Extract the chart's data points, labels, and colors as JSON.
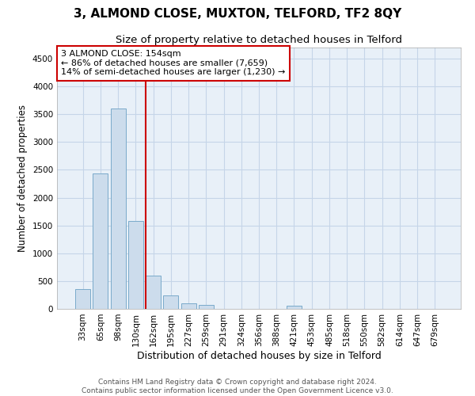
{
  "title": "3, ALMOND CLOSE, MUXTON, TELFORD, TF2 8QY",
  "subtitle": "Size of property relative to detached houses in Telford",
  "xlabel": "Distribution of detached houses by size in Telford",
  "ylabel": "Number of detached properties",
  "categories": [
    "33sqm",
    "65sqm",
    "98sqm",
    "130sqm",
    "162sqm",
    "195sqm",
    "227sqm",
    "259sqm",
    "291sqm",
    "324sqm",
    "356sqm",
    "388sqm",
    "421sqm",
    "453sqm",
    "485sqm",
    "518sqm",
    "550sqm",
    "582sqm",
    "614sqm",
    "647sqm",
    "679sqm"
  ],
  "values": [
    360,
    2430,
    3600,
    1580,
    600,
    240,
    100,
    65,
    0,
    0,
    0,
    0,
    55,
    0,
    0,
    0,
    0,
    0,
    0,
    0,
    0
  ],
  "bar_color": "#ccdcec",
  "bar_edge_color": "#7aaaca",
  "vline_position": 4,
  "property_line_label": "3 ALMOND CLOSE: 154sqm",
  "annotation_line1": "← 86% of detached houses are smaller (7,659)",
  "annotation_line2": "14% of semi-detached houses are larger (1,230) →",
  "annotation_box_color": "#ffffff",
  "annotation_box_edge": "#cc0000",
  "vline_color": "#cc0000",
  "ylim": [
    0,
    4700
  ],
  "yticks": [
    0,
    500,
    1000,
    1500,
    2000,
    2500,
    3000,
    3500,
    4000,
    4500
  ],
  "grid_color": "#c5d5e8",
  "bg_color": "#e8f0f8",
  "footer1": "Contains HM Land Registry data © Crown copyright and database right 2024.",
  "footer2": "Contains public sector information licensed under the Open Government Licence v3.0.",
  "title_fontsize": 11,
  "subtitle_fontsize": 9.5,
  "xlabel_fontsize": 9,
  "ylabel_fontsize": 8.5,
  "tick_fontsize": 7.5,
  "annotation_fontsize": 8,
  "footer_fontsize": 6.5
}
